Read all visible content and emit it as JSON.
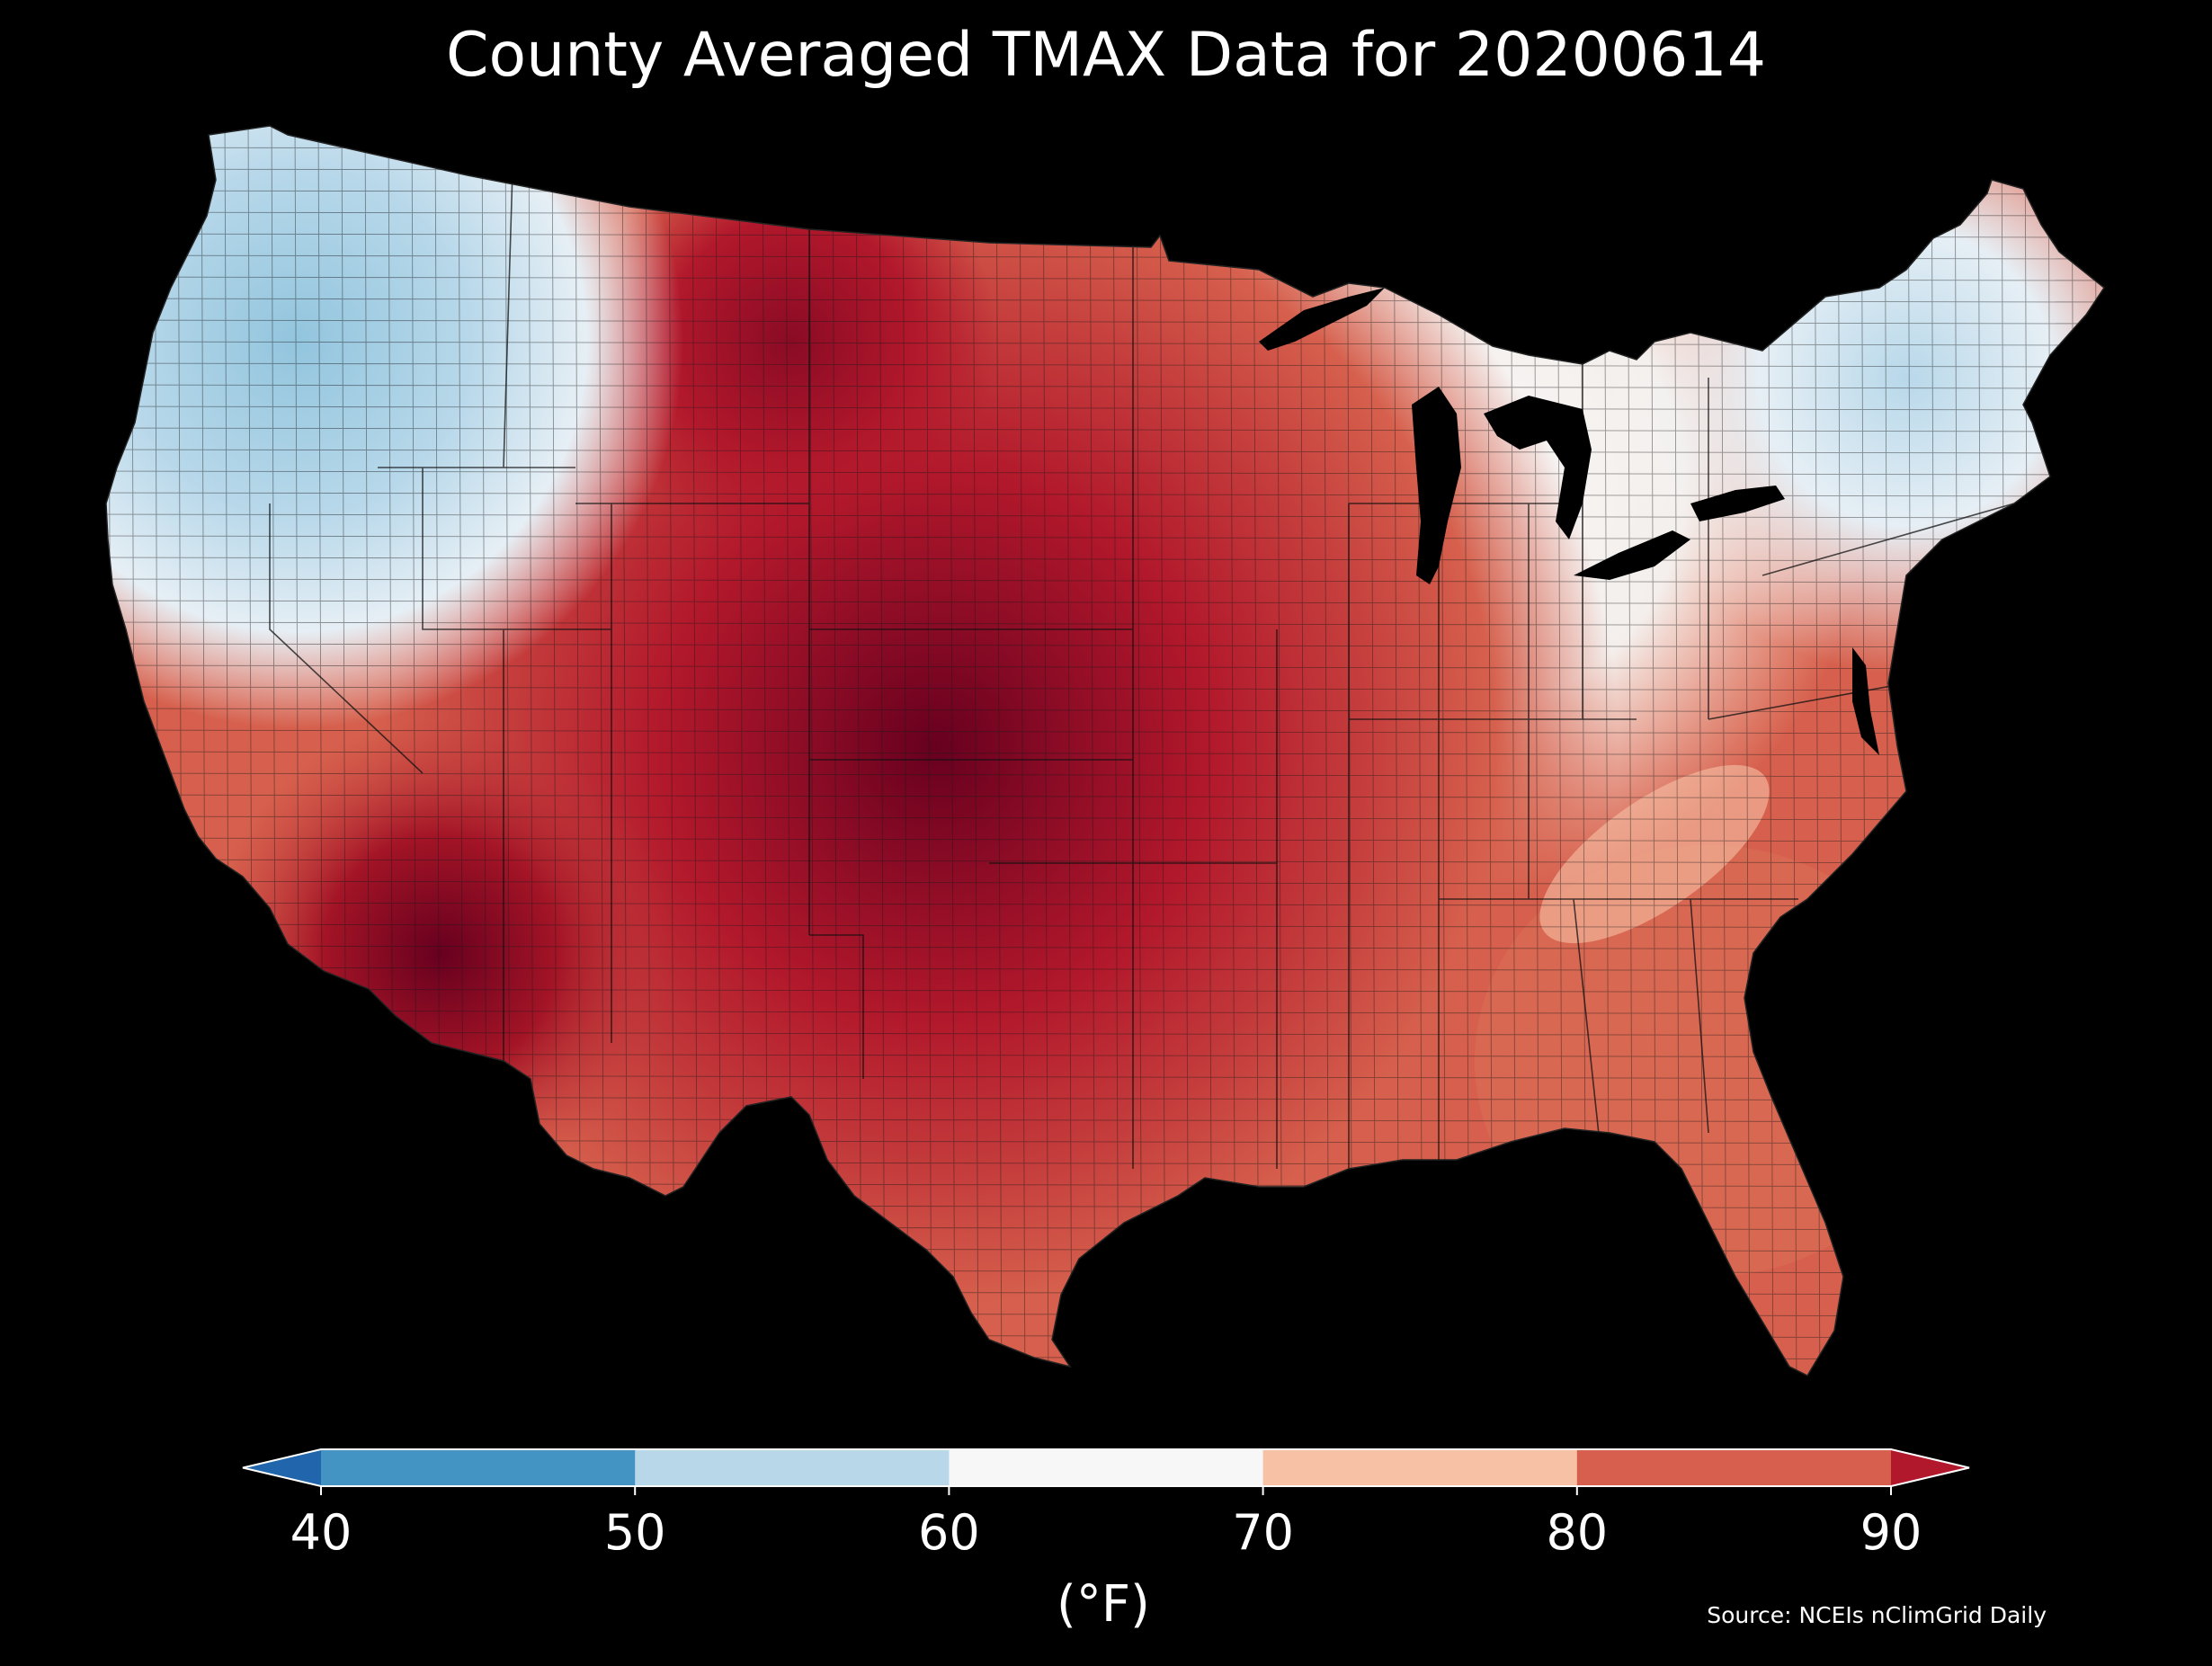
{
  "title": "County Averaged TMAX Data for 20200614",
  "colorbar": {
    "label": "(°F)",
    "ticks": [
      "40",
      "50",
      "60",
      "70",
      "80",
      "90"
    ],
    "bins": [
      {
        "range": [
          null,
          40
        ],
        "color": "#2166ac"
      },
      {
        "range": [
          40,
          50
        ],
        "color": "#4393c3"
      },
      {
        "range": [
          50,
          60
        ],
        "color": "#b8d8ea"
      },
      {
        "range": [
          60,
          70
        ],
        "color": "#f7f7f7"
      },
      {
        "range": [
          70,
          80
        ],
        "color": "#f7c1a6"
      },
      {
        "range": [
          80,
          90
        ],
        "color": "#d6604d"
      },
      {
        "range": [
          90,
          null
        ],
        "color": "#b2182b"
      }
    ]
  },
  "source": "Source: NCEIs nClimGrid Daily",
  "map": {
    "region": "Contiguous United States",
    "variable": "TMAX",
    "date": "20200614",
    "background": "#000000",
    "water_color": "#000000",
    "color_scale": {
      "min": 40,
      "max": 90,
      "stops": [
        "#2166ac",
        "#4393c3",
        "#92c5de",
        "#d1e5f0",
        "#f7f7f7",
        "#fddbc7",
        "#f4a582",
        "#d6604d",
        "#b2182b",
        "#67001f"
      ]
    }
  }
}
